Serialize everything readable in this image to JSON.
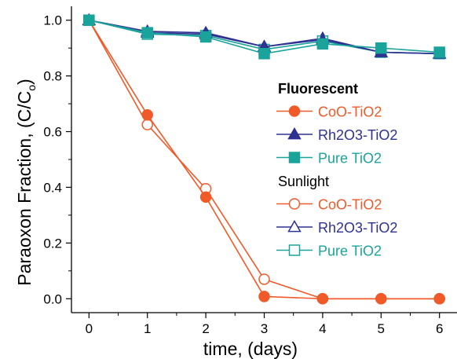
{
  "chart_data": {
    "type": "line",
    "xlabel": "time, (days)",
    "ylabel": "Paraoxon Fraction, (C/C",
    "ylabel_subscript": "o",
    "ylabel_close": ")",
    "xlim": [
      -0.3,
      6.3
    ],
    "ylim": [
      -0.05,
      1.05
    ],
    "x_ticks": [
      0,
      1,
      2,
      3,
      4,
      5,
      6
    ],
    "y_ticks": [
      0.0,
      0.2,
      0.4,
      0.6,
      0.8,
      1.0
    ],
    "x_tick_labels": [
      "0",
      "1",
      "2",
      "3",
      "4",
      "5",
      "6"
    ],
    "y_tick_labels": [
      "0.0",
      "0.2",
      "0.4",
      "0.6",
      "0.8",
      "1.0"
    ],
    "grid": false,
    "legend_position": "right",
    "x": [
      0,
      1,
      2,
      3,
      4,
      5,
      6
    ],
    "legend_groups": [
      {
        "heading": "Fluorescent",
        "heading_bold": true,
        "series": [
          {
            "name": "CoO-TiO2",
            "marker": "circle",
            "filled": true,
            "color": "#f05a28",
            "values": [
              1.0,
              0.66,
              0.365,
              0.008,
              0.0,
              0.0,
              0.0
            ]
          },
          {
            "name": "Rh2O3-TiO2",
            "marker": "triangle",
            "filled": true,
            "color": "#2e3192",
            "values": [
              1.0,
              0.96,
              0.955,
              0.905,
              0.93,
              0.885,
              0.88
            ]
          },
          {
            "name": "Pure TiO2",
            "marker": "square",
            "filled": true,
            "color": "#1aa39b",
            "values": [
              1.0,
              0.955,
              0.94,
              0.88,
              0.915,
              0.9,
              0.885
            ]
          }
        ]
      },
      {
        "heading": "Sunlight",
        "heading_bold": false,
        "series": [
          {
            "name": "CoO-TiO2",
            "marker": "circle",
            "filled": false,
            "color": "#f05a28",
            "values": [
              1.0,
              0.625,
              0.395,
              0.07,
              0.0,
              0.0,
              0.0
            ]
          },
          {
            "name": "Rh2O3-TiO2",
            "marker": "triangle",
            "filled": false,
            "color": "#2e3192",
            "values": [
              1.0,
              0.955,
              0.95,
              0.905,
              0.935,
              0.885,
              0.88
            ]
          },
          {
            "name": "Pure TiO2",
            "marker": "square",
            "filled": false,
            "color": "#1aa39b",
            "values": [
              1.0,
              0.95,
              0.945,
              0.895,
              0.925,
              0.885,
              0.88
            ]
          }
        ]
      }
    ]
  }
}
